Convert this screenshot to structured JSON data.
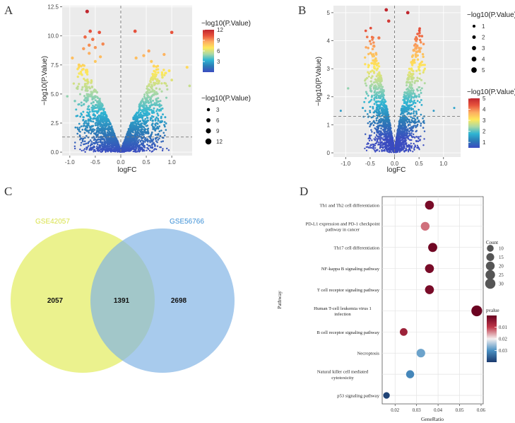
{
  "panels": {
    "A": {
      "label": "A"
    },
    "B": {
      "label": "B"
    },
    "C": {
      "label": "C"
    },
    "D": {
      "label": "D"
    }
  },
  "colors": {
    "gradient": [
      "#3b4cc0",
      "#2c7bb6",
      "#2fb5d3",
      "#abd9a5",
      "#fee85a",
      "#fdae61",
      "#e8543d",
      "#c0262e"
    ],
    "venn_left": "#e8f07a",
    "venn_right": "#7fb2e5",
    "venn_left_label": "#d9e24a",
    "venn_right_label": "#3b8fd6",
    "dot_low": "#1a3a6e",
    "dot_mid": "#f5f0f0",
    "dot_high": "#67001f"
  },
  "chart_data": [
    {
      "type": "scatter",
      "panel": "A",
      "title": "",
      "xlabel": "logFC",
      "ylabel": "−log10(P.Value)",
      "xlim": [
        -1.15,
        1.4
      ],
      "ylim": [
        -0.3,
        12.6
      ],
      "xticks": [
        -1.0,
        -0.5,
        0.0,
        0.5,
        1.0
      ],
      "xtick_labels": [
        "-1.0",
        "-0.5",
        "0.0",
        "0.5",
        "1.0"
      ],
      "yticks": [
        0.0,
        2.5,
        5.0,
        7.5,
        10.0,
        12.5
      ],
      "ytick_labels": [
        "0.0",
        "2.5",
        "5.0",
        "7.5",
        "10.0",
        "12.5"
      ],
      "hline": 1.3,
      "vline": 0,
      "color_legend": {
        "title": "−log10(P.Value)",
        "min": 0,
        "max": 12,
        "ticks": [
          3,
          6,
          9,
          12
        ],
        "tick_labels": [
          "3",
          "6",
          "9",
          "12"
        ]
      },
      "size_legend": {
        "title": "−log10(P.Value)",
        "values": [
          3,
          6,
          9,
          12
        ],
        "labels": [
          "3",
          "6",
          "9",
          "12"
        ]
      },
      "highlight_points": [
        [
          -0.66,
          12.1
        ],
        [
          -0.6,
          10.4
        ],
        [
          -0.42,
          10.3
        ],
        [
          0.28,
          10.4
        ],
        [
          1.0,
          10.3
        ],
        [
          -0.7,
          9.9
        ],
        [
          -0.55,
          9.7
        ],
        [
          -0.62,
          9.2
        ],
        [
          -0.5,
          9.0
        ],
        [
          -0.35,
          9.3
        ],
        [
          -0.73,
          8.9
        ],
        [
          -0.62,
          8.5
        ],
        [
          -0.4,
          8.2
        ],
        [
          -0.95,
          8.1
        ],
        [
          -0.5,
          7.8
        ],
        [
          0.3,
          8.1
        ],
        [
          0.55,
          8.7
        ],
        [
          0.85,
          8.4
        ],
        [
          0.45,
          8.3
        ],
        [
          1.3,
          7.3
        ],
        [
          0.6,
          7.8
        ],
        [
          -0.82,
          7.5
        ],
        [
          0.65,
          7.4
        ],
        [
          1.35,
          5.7
        ],
        [
          0.75,
          6.1
        ],
        [
          0.95,
          7.0
        ],
        [
          1.0,
          6.2
        ],
        [
          -1.05,
          4.8
        ],
        [
          -0.86,
          5.5
        ],
        [
          -0.9,
          4.4
        ]
      ],
      "cloud": {
        "x_extent": [
          -0.95,
          0.95
        ],
        "peak_y": 7.6,
        "n": 2600,
        "seed": 11
      }
    },
    {
      "type": "scatter",
      "panel": "B",
      "title": "",
      "xlabel": "logFC",
      "ylabel": "−log10(P.Value)",
      "xlim": [
        -1.25,
        1.35
      ],
      "ylim": [
        -0.15,
        5.25
      ],
      "xticks": [
        -1.0,
        -0.5,
        0.0,
        0.5,
        1.0
      ],
      "xtick_labels": [
        "-1.0",
        "-0.5",
        "0.0",
        "0.5",
        "1.0"
      ],
      "yticks": [
        0,
        1,
        2,
        3,
        4,
        5
      ],
      "ytick_labels": [
        "0",
        "1",
        "2",
        "3",
        "4",
        "5"
      ],
      "hline": 1.3,
      "vline": 0,
      "color_legend": {
        "title": "−log10(P.Value)",
        "min": 0.5,
        "max": 5,
        "ticks": [
          1,
          2,
          3,
          4,
          5
        ],
        "tick_labels": [
          "1",
          "2",
          "3",
          "4",
          "5"
        ]
      },
      "size_legend": {
        "title": "−log10(P.Value)",
        "values": [
          1,
          2,
          3,
          4,
          5
        ],
        "labels": [
          "1",
          "2",
          "3",
          "4",
          "5"
        ]
      },
      "highlight_points": [
        [
          -0.17,
          5.1
        ],
        [
          0.27,
          5.0
        ],
        [
          -0.12,
          4.7
        ],
        [
          -0.95,
          2.3
        ],
        [
          1.22,
          1.6
        ],
        [
          -1.1,
          1.5
        ],
        [
          -0.65,
          1.6
        ],
        [
          0.8,
          1.5
        ],
        [
          -0.32,
          4.1
        ],
        [
          0.45,
          3.6
        ],
        [
          -0.42,
          3.8
        ],
        [
          0.38,
          3.3
        ]
      ],
      "cloud": {
        "x_extent": [
          -0.6,
          0.65
        ],
        "peak_y": 4.55,
        "n": 2200,
        "seed": 23
      }
    },
    {
      "type": "venn",
      "panel": "C",
      "sets": [
        {
          "name": "GSE42057",
          "only": "2057"
        },
        {
          "name": "GSE56766",
          "only": "2698"
        }
      ],
      "intersection": "1391"
    },
    {
      "type": "dot",
      "panel": "D",
      "title": "",
      "xlabel": "GeneRatio",
      "ylabel": "Pathway",
      "xlim": [
        0.014,
        0.061
      ],
      "xticks": [
        0.02,
        0.03,
        0.04,
        0.05,
        0.06
      ],
      "xtick_labels": [
        "0.02",
        "0.03",
        "0.04",
        "0.05",
        "0.06"
      ],
      "categories": [
        "Th1 and Th2 cell differentiation",
        "PD-L1 expression and PD-1 checkpoint\npathway in cancer",
        "Th17 cell differentiation",
        "NF-kappa B signaling pathway",
        "T cell receptor signaling pathway",
        "Human T-cell leukemia virus 1\ninfection",
        "B cell receptor signaling pathway",
        "Necroptosis",
        "Natural killer cell mediated\ncytotoxicity",
        "p53 signaling pathway"
      ],
      "gene_ratio": [
        0.036,
        0.034,
        0.0375,
        0.036,
        0.036,
        0.058,
        0.024,
        0.032,
        0.027,
        0.016
      ],
      "count": [
        21,
        20,
        22,
        21,
        21,
        34,
        14,
        19,
        16,
        9
      ],
      "pvalue": [
        0.002,
        0.013,
        0.001,
        0.002,
        0.002,
        0.0005,
        0.006,
        0.028,
        0.031,
        0.039
      ],
      "size_legend": {
        "title": "Count",
        "values": [
          10,
          15,
          20,
          25,
          30
        ],
        "labels": [
          "10",
          "15",
          "20",
          "25",
          "30"
        ]
      },
      "color_legend": {
        "title": "pvalue",
        "min": 0.0,
        "max": 0.04,
        "ticks": [
          0.01,
          0.02,
          0.03
        ],
        "tick_labels": [
          "0.01",
          "0.02",
          "0.03"
        ]
      }
    }
  ]
}
